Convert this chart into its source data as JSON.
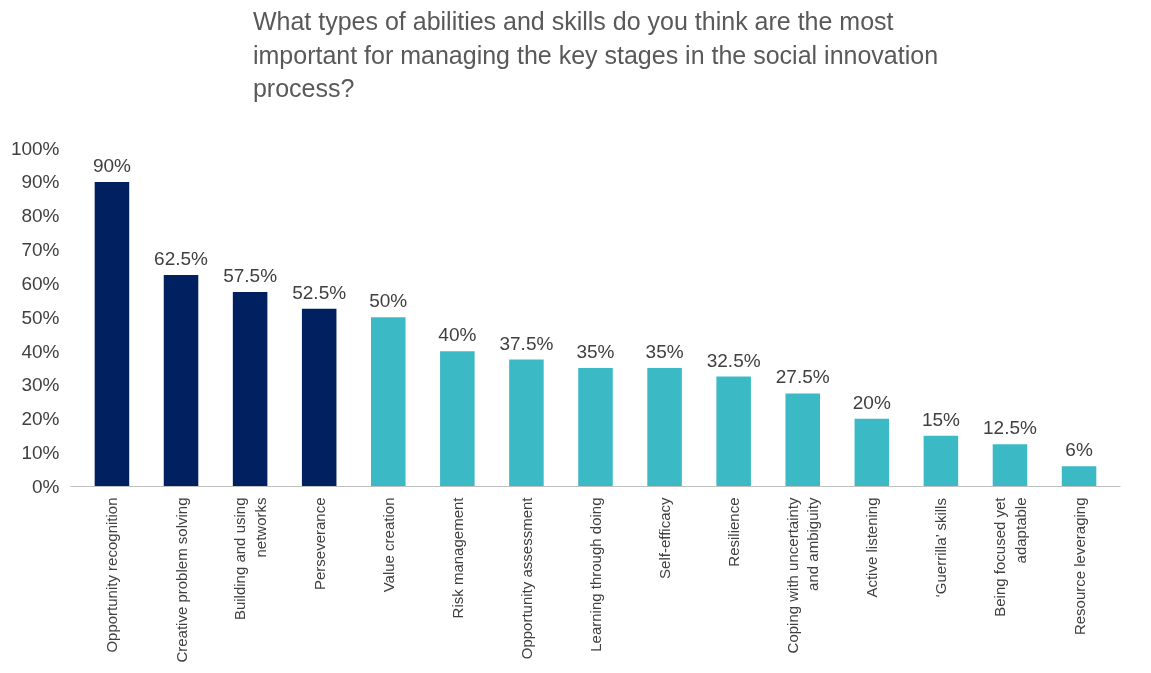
{
  "chart_data": {
    "type": "bar",
    "title": "What types of abilities and skills do you think are the most important for managing the key stages in the social innovation process?",
    "categories": [
      "Opportunity recognition",
      "Creative problem solving",
      "Building and using networks",
      "Perseverance",
      "Value creation",
      "Risk management",
      "Opportunity assessment",
      "Learning through doing",
      "Self-efficacy",
      "Resilience",
      "Coping with uncertainty and ambiguity",
      "Active listening",
      "‘Guerrilla’ skills",
      "Being focused yet adaptable",
      "Resource leveraging"
    ],
    "values": [
      90,
      62.5,
      57.5,
      52.5,
      50,
      40,
      37.5,
      35,
      35,
      32.5,
      27.5,
      20,
      15,
      12.5,
      6
    ],
    "colors": [
      "#002060",
      "#002060",
      "#002060",
      "#002060",
      "#3bbac6",
      "#3bbac6",
      "#3bbac6",
      "#3bbac6",
      "#3bbac6",
      "#3bbac6",
      "#3bbac6",
      "#3bbac6",
      "#3bbac6",
      "#3bbac6",
      "#3bbac6"
    ],
    "value_labels": [
      "90%",
      "62.5%",
      "57.5%",
      "52.5%",
      "50%",
      "40%",
      "37.5%",
      "35%",
      "35%",
      "32.5%",
      "27.5%",
      "20%",
      "15%",
      "12.5%",
      "6%"
    ],
    "ylim": [
      0,
      100
    ],
    "yticks": [
      {
        "value": 0,
        "label": "0%"
      },
      {
        "value": 10,
        "label": "10%"
      },
      {
        "value": 20,
        "label": "20%"
      },
      {
        "value": 30,
        "label": "30%"
      },
      {
        "value": 40,
        "label": "40%"
      },
      {
        "value": 50,
        "label": "50%"
      },
      {
        "value": 60,
        "label": "60%"
      },
      {
        "value": 70,
        "label": "70%"
      },
      {
        "value": 80,
        "label": "80%"
      },
      {
        "value": 90,
        "label": "90%"
      },
      {
        "value": 100,
        "label": "100%"
      }
    ],
    "grid": false
  }
}
